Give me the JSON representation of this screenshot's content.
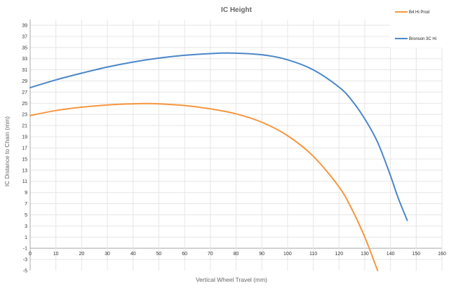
{
  "chart_data": {
    "type": "line",
    "title": "IC Height",
    "xlabel": "Vertical Wheel Travel (mm)",
    "ylabel": "IC Distance to Chain (mm)",
    "xlim": [
      0,
      160
    ],
    "ylim": [
      -5,
      40
    ],
    "x_ticks": [
      0,
      10,
      20,
      30,
      40,
      50,
      60,
      70,
      80,
      90,
      100,
      110,
      120,
      130,
      140,
      150,
      160
    ],
    "y_ticks": [
      -5,
      -3,
      -1,
      1,
      3,
      5,
      7,
      9,
      11,
      13,
      15,
      17,
      19,
      21,
      23,
      25,
      27,
      29,
      31,
      33,
      35,
      37,
      39
    ],
    "grid": true,
    "legend_position": "right",
    "series": [
      {
        "name": "B4 Hi Prod",
        "color": "#F7963E",
        "x": [
          0,
          10,
          20,
          30,
          40,
          45,
          50,
          60,
          70,
          80,
          90,
          100,
          110,
          120,
          125,
          130,
          135
        ],
        "y": [
          22.8,
          23.7,
          24.3,
          24.7,
          24.9,
          24.95,
          24.9,
          24.6,
          24.0,
          23.1,
          21.6,
          19.2,
          15.5,
          10.0,
          6.0,
          1.0,
          -5.0
        ]
      },
      {
        "name": "Bronson 3C Hi",
        "color": "#4A86C8",
        "x": [
          0,
          10,
          20,
          30,
          40,
          50,
          60,
          70,
          78,
          90,
          100,
          110,
          120,
          125,
          130,
          135,
          140,
          143,
          146.5
        ],
        "y": [
          27.8,
          29.2,
          30.4,
          31.5,
          32.4,
          33.1,
          33.6,
          33.9,
          34.0,
          33.7,
          32.8,
          31.0,
          27.9,
          25.5,
          22.2,
          18.0,
          12.0,
          8.0,
          4.0
        ]
      }
    ]
  }
}
